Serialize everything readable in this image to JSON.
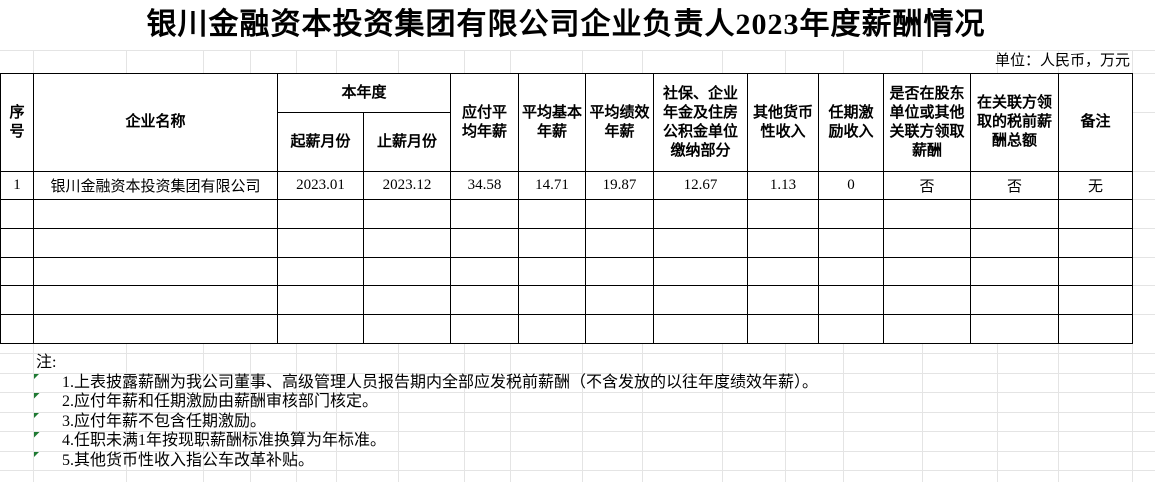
{
  "title": "银川金融资本投资集团有限公司企业负责人2023年度薪酬情况",
  "unit_note": "单位：人民币，万元",
  "table": {
    "headers": {
      "seq": "序号",
      "company": "企业名称",
      "current_year_group": "本年度",
      "start_month": "起薪月份",
      "end_month": "止薪月份",
      "payable_avg_salary": "应付平\n均年薪",
      "avg_base_salary": "平均基本\n年薪",
      "avg_perf_salary": "平均绩效\n年薪",
      "social_insurance": "社保、企业\n年金及住房\n公积金单位\n缴纳部分",
      "other_cash_income": "其他货币\n性收入",
      "tenure_incentive_income": "任期激\n励收入",
      "related_party_pay_flag": "是否在股东\n单位或其他\n关联方领取\n薪酬",
      "related_party_pretax_total": "在关联方领\n取的税前薪\n酬总额",
      "remark": "备注"
    },
    "rows": [
      [
        "1",
        "银川金融资本投资集团有限公司",
        "2023.01",
        "2023.12",
        "34.58",
        "14.71",
        "19.87",
        "12.67",
        "1.13",
        "0",
        "否",
        "否",
        "无"
      ]
    ],
    "empty_row_count": 5
  },
  "notes": {
    "label": "注:",
    "items": [
      "1.上表披露薪酬为我公司董事、高级管理人员报告期内全部应发税前薪酬（不含发放的以往年度绩效年薪）。",
      "2.应付年薪和任期激励由薪酬审核部门核定。",
      "3.应付年薪不包含任期激励。",
      "4.任职未满1年按现职薪酬标准换算为年标准。",
      "5.其他货币性收入指公车改革补贴。"
    ]
  },
  "colors": {
    "border": "#000000",
    "gridline": "#e4e4e4",
    "flag_triangle": "#1f7a33",
    "text": "#000000",
    "background": "#ffffff"
  }
}
